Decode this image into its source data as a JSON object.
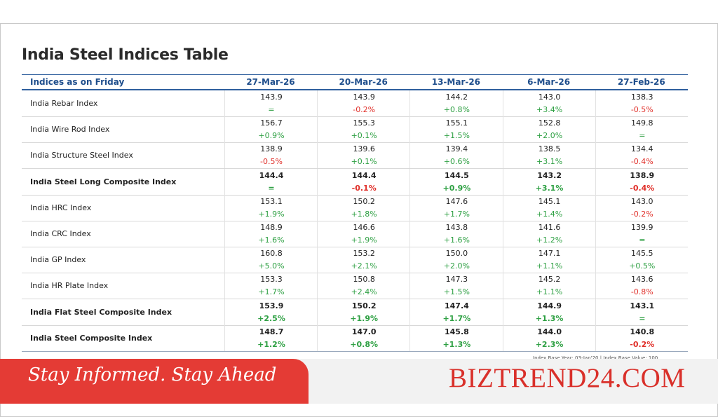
{
  "title": "India Steel Indices Table",
  "table": {
    "header": [
      "Indices as on Friday",
      "27-Mar-26",
      "20-Mar-26",
      "13-Mar-26",
      "6-Mar-26",
      "27-Feb-26"
    ],
    "rows": [
      {
        "name": "India Rebar Index",
        "bold": false,
        "cells": [
          {
            "value": "143.9",
            "change": "="
          },
          {
            "value": "143.9",
            "change": "-0.2%"
          },
          {
            "value": "144.2",
            "change": "+0.8%"
          },
          {
            "value": "143.0",
            "change": "+3.4%"
          },
          {
            "value": "138.3",
            "change": "-0.5%"
          }
        ]
      },
      {
        "name": "India Wire Rod Index",
        "bold": false,
        "cells": [
          {
            "value": "156.7",
            "change": "+0.9%"
          },
          {
            "value": "155.3",
            "change": "+0.1%"
          },
          {
            "value": "155.1",
            "change": "+1.5%"
          },
          {
            "value": "152.8",
            "change": "+2.0%"
          },
          {
            "value": "149.8",
            "change": "="
          }
        ]
      },
      {
        "name": "India Structure Steel Index",
        "bold": false,
        "cells": [
          {
            "value": "138.9",
            "change": "-0.5%"
          },
          {
            "value": "139.6",
            "change": "+0.1%"
          },
          {
            "value": "139.4",
            "change": "+0.6%"
          },
          {
            "value": "138.5",
            "change": "+3.1%"
          },
          {
            "value": "134.4",
            "change": "-0.4%"
          }
        ]
      },
      {
        "name": "India Steel Long Composite Index",
        "bold": true,
        "cells": [
          {
            "value": "144.4",
            "change": "="
          },
          {
            "value": "144.4",
            "change": "-0.1%"
          },
          {
            "value": "144.5",
            "change": "+0.9%"
          },
          {
            "value": "143.2",
            "change": "+3.1%"
          },
          {
            "value": "138.9",
            "change": "-0.4%"
          }
        ]
      },
      {
        "name": "India HRC Index",
        "bold": false,
        "cells": [
          {
            "value": "153.1",
            "change": "+1.9%"
          },
          {
            "value": "150.2",
            "change": "+1.8%"
          },
          {
            "value": "147.6",
            "change": "+1.7%"
          },
          {
            "value": "145.1",
            "change": "+1.4%"
          },
          {
            "value": "143.0",
            "change": "-0.2%"
          }
        ]
      },
      {
        "name": "India CRC Index",
        "bold": false,
        "cells": [
          {
            "value": "148.9",
            "change": "+1.6%"
          },
          {
            "value": "146.6",
            "change": "+1.9%"
          },
          {
            "value": "143.8",
            "change": "+1.6%"
          },
          {
            "value": "141.6",
            "change": "+1.2%"
          },
          {
            "value": "139.9",
            "change": "="
          }
        ]
      },
      {
        "name": "India GP Index",
        "bold": false,
        "cells": [
          {
            "value": "160.8",
            "change": "+5.0%"
          },
          {
            "value": "153.2",
            "change": "+2.1%"
          },
          {
            "value": "150.0",
            "change": "+2.0%"
          },
          {
            "value": "147.1",
            "change": "+1.1%"
          },
          {
            "value": "145.5",
            "change": "+0.5%"
          }
        ]
      },
      {
        "name": "India HR Plate Index",
        "bold": false,
        "cells": [
          {
            "value": "153.3",
            "change": "+1.7%"
          },
          {
            "value": "150.8",
            "change": "+2.4%"
          },
          {
            "value": "147.3",
            "change": "+1.5%"
          },
          {
            "value": "145.2",
            "change": "+1.1%"
          },
          {
            "value": "143.6",
            "change": "-0.8%"
          }
        ]
      },
      {
        "name": "India Flat Steel Composite Index",
        "bold": true,
        "cells": [
          {
            "value": "153.9",
            "change": "+2.5%"
          },
          {
            "value": "150.2",
            "change": "+1.9%"
          },
          {
            "value": "147.4",
            "change": "+1.7%"
          },
          {
            "value": "144.9",
            "change": "+1.3%"
          },
          {
            "value": "143.1",
            "change": "="
          }
        ]
      },
      {
        "name": "India Steel Composite Index",
        "bold": true,
        "cells": [
          {
            "value": "148.7",
            "change": "+1.2%"
          },
          {
            "value": "147.0",
            "change": "+0.8%"
          },
          {
            "value": "145.8",
            "change": "+1.3%"
          },
          {
            "value": "144.0",
            "change": "+2.3%"
          },
          {
            "value": "140.8",
            "change": "-0.2%"
          }
        ]
      }
    ]
  },
  "footnote": "Index Base Year: 03-Jan'20 | Index Base Value: 100",
  "banner": {
    "tagline": "Stay Informed. Stay Ahead",
    "brand": "BIZTREND24.COM"
  }
}
